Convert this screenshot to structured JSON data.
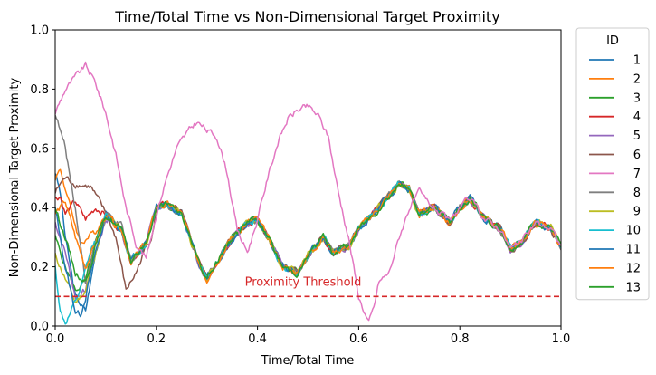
{
  "chart_data": {
    "type": "line",
    "title": "Time/Total Time vs Non-Dimensional Target Proximity",
    "xlabel": "Time/Total Time",
    "ylabel": "Non-Dimensional Target Proximity",
    "xlim": [
      0,
      1
    ],
    "ylim": [
      0,
      1
    ],
    "xticks": [
      "0.0",
      "0.2",
      "0.4",
      "0.6",
      "0.8",
      "1.0"
    ],
    "yticks": [
      "0.0",
      "0.2",
      "0.4",
      "0.6",
      "0.8",
      "1.0"
    ],
    "grid": false,
    "legend": {
      "title": "ID",
      "placement": "outside-right"
    },
    "threshold": {
      "y": 0.1,
      "label": "Proximity Threshold",
      "color": "#d62728"
    },
    "shared_x": [
      0,
      0.02,
      0.05,
      0.08,
      0.1,
      0.13,
      0.15,
      0.18,
      0.2,
      0.22,
      0.25,
      0.28,
      0.3,
      0.32,
      0.35,
      0.38,
      0.4,
      0.42,
      0.45,
      0.48,
      0.5,
      0.53,
      0.55,
      0.58,
      0.6,
      0.63,
      0.65,
      0.68,
      0.7,
      0.72,
      0.75,
      0.78,
      0.8,
      0.82,
      0.85,
      0.88,
      0.9,
      0.92,
      0.95,
      0.98,
      1.0
    ],
    "shared_y": [
      0.38,
      0.32,
      0.08,
      0.2,
      0.36,
      0.33,
      0.22,
      0.28,
      0.4,
      0.41,
      0.38,
      0.23,
      0.16,
      0.22,
      0.3,
      0.35,
      0.36,
      0.3,
      0.2,
      0.18,
      0.24,
      0.3,
      0.25,
      0.27,
      0.33,
      0.38,
      0.42,
      0.48,
      0.46,
      0.38,
      0.4,
      0.35,
      0.4,
      0.43,
      0.36,
      0.33,
      0.26,
      0.28,
      0.35,
      0.33,
      0.27
    ],
    "series": [
      {
        "name": "1",
        "color": "#1f77b4",
        "x": [
          0,
          0.01,
          0.02,
          0.04,
          0.06,
          0.08,
          0.1
        ],
        "y": [
          0.52,
          0.45,
          0.3,
          0.1,
          0.05,
          0.25,
          0.38
        ]
      },
      {
        "name": "2",
        "color": "#ff7f0e",
        "x": [
          0,
          0.01,
          0.03,
          0.05,
          0.08,
          0.1
        ],
        "y": [
          0.5,
          0.53,
          0.4,
          0.28,
          0.32,
          0.38
        ]
      },
      {
        "name": "3",
        "color": "#2ca02c",
        "x": [
          0,
          0.02,
          0.04,
          0.06,
          0.08,
          0.1
        ],
        "y": [
          0.3,
          0.2,
          0.12,
          0.15,
          0.28,
          0.37
        ]
      },
      {
        "name": "4",
        "color": "#d62728",
        "x": [
          0,
          0.01,
          0.02,
          0.04,
          0.06,
          0.08,
          0.1
        ],
        "y": [
          0.43,
          0.44,
          0.38,
          0.42,
          0.36,
          0.4,
          0.38
        ]
      },
      {
        "name": "5",
        "color": "#9467bd",
        "x": [
          0,
          0.02,
          0.04,
          0.06,
          0.08,
          0.1
        ],
        "y": [
          0.35,
          0.25,
          0.1,
          0.12,
          0.25,
          0.36
        ]
      },
      {
        "name": "6",
        "color": "#8c564b",
        "x": [
          0,
          0.01,
          0.02,
          0.04,
          0.07,
          0.1,
          0.12,
          0.14,
          0.16,
          0.18
        ],
        "y": [
          0.45,
          0.48,
          0.5,
          0.48,
          0.47,
          0.38,
          0.3,
          0.12,
          0.18,
          0.27
        ]
      },
      {
        "name": "7",
        "color": "#e377c2",
        "x": [
          0,
          0.02,
          0.04,
          0.06,
          0.08,
          0.1,
          0.12,
          0.14,
          0.16,
          0.18,
          0.2,
          0.22,
          0.24,
          0.26,
          0.28,
          0.3,
          0.32,
          0.34,
          0.36,
          0.38,
          0.4,
          0.42,
          0.44,
          0.46,
          0.48,
          0.5,
          0.52,
          0.54,
          0.56,
          0.58,
          0.6,
          0.62,
          0.63,
          0.64,
          0.66,
          0.68,
          0.7,
          0.72
        ],
        "y": [
          0.72,
          0.8,
          0.84,
          0.88,
          0.82,
          0.72,
          0.58,
          0.4,
          0.28,
          0.23,
          0.38,
          0.5,
          0.6,
          0.65,
          0.69,
          0.66,
          0.64,
          0.52,
          0.32,
          0.25,
          0.36,
          0.5,
          0.62,
          0.7,
          0.73,
          0.74,
          0.71,
          0.64,
          0.45,
          0.3,
          0.1,
          0.01,
          0.06,
          0.15,
          0.18,
          0.3,
          0.4,
          0.45
        ]
      },
      {
        "name": "8",
        "color": "#7f7f7f",
        "x": [
          0,
          0.02,
          0.04,
          0.06,
          0.08,
          0.1,
          0.12
        ],
        "y": [
          0.72,
          0.6,
          0.4,
          0.15,
          0.28,
          0.38,
          0.35
        ]
      },
      {
        "name": "9",
        "color": "#bcbd22",
        "x": [
          0,
          0.02,
          0.04,
          0.06,
          0.08,
          0.1
        ],
        "y": [
          0.24,
          0.16,
          0.08,
          0.12,
          0.25,
          0.36
        ]
      },
      {
        "name": "10",
        "color": "#17becf",
        "x": [
          0,
          0.01,
          0.02,
          0.03,
          0.05,
          0.07,
          0.1
        ],
        "y": [
          0.2,
          0.05,
          0.01,
          0.04,
          0.12,
          0.25,
          0.37
        ]
      },
      {
        "name": "11",
        "color": "#1f77b4",
        "x": [
          0,
          0.02,
          0.04,
          0.05,
          0.06,
          0.08,
          0.1
        ],
        "y": [
          0.4,
          0.2,
          0.05,
          0.04,
          0.1,
          0.25,
          0.37
        ]
      },
      {
        "name": "12",
        "color": "#ff7f0e",
        "x": [
          0,
          0.02,
          0.04,
          0.06,
          0.08,
          0.1
        ],
        "y": [
          0.38,
          0.42,
          0.3,
          0.2,
          0.28,
          0.37
        ]
      },
      {
        "name": "13",
        "color": "#2ca02c",
        "x": [
          0,
          0.02,
          0.04,
          0.06,
          0.08,
          0.1
        ],
        "y": [
          0.4,
          0.3,
          0.18,
          0.15,
          0.27,
          0.37
        ]
      }
    ]
  }
}
